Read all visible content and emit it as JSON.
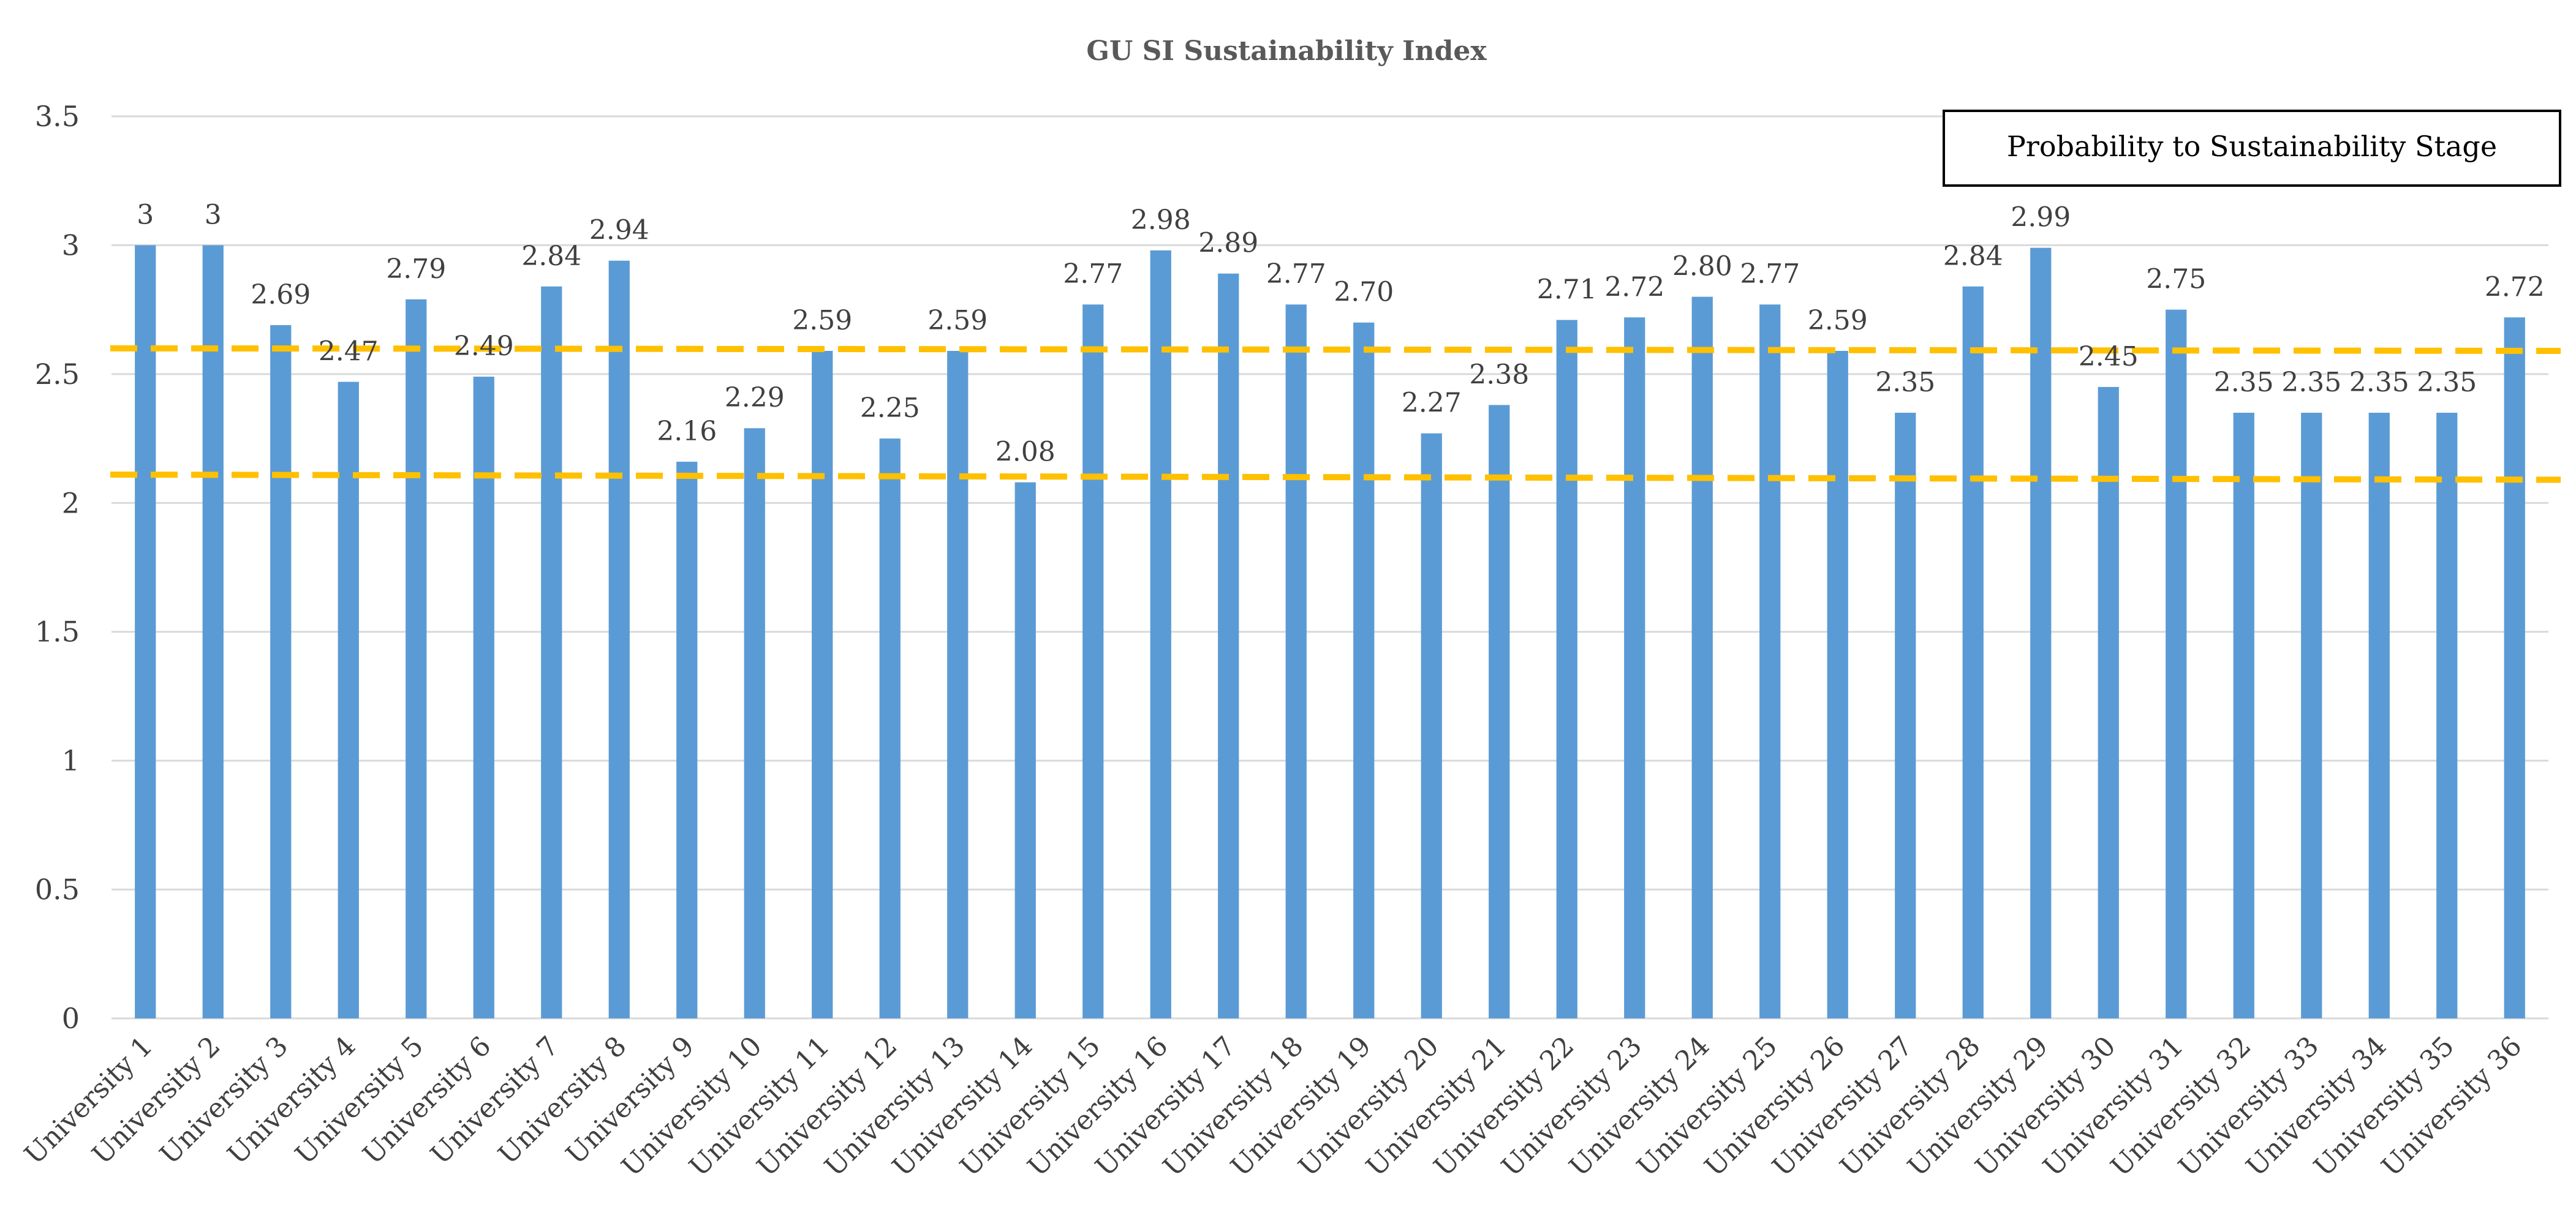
{
  "chart_data": {
    "type": "bar",
    "title": "GU SI Sustainability  Index",
    "xlabel": "",
    "ylabel": "",
    "ylim": [
      0,
      3.5
    ],
    "yticks": [
      {
        "value": 0,
        "label": "0"
      },
      {
        "value": 0.5,
        "label": "0.5"
      },
      {
        "value": 1,
        "label": "1"
      },
      {
        "value": 1.5,
        "label": "1.5"
      },
      {
        "value": 2,
        "label": "2"
      },
      {
        "value": 2.5,
        "label": "2.5"
      },
      {
        "value": 3,
        "label": "3"
      },
      {
        "value": 3.5,
        "label": "3.5"
      }
    ],
    "grid": true,
    "categories": [
      "University 1",
      "University 2",
      "University 3",
      "University 4",
      "University 5",
      "University 6",
      "University 7",
      "University 8",
      "University 9",
      "University 10",
      "University 11",
      "University 12",
      "University 13",
      "University 14",
      "University 15",
      "University 16",
      "University 17",
      "University 18",
      "University 19",
      "University 20",
      "University 21",
      "University 22",
      "University 23",
      "University 24",
      "University 25",
      "University 26",
      "University 27",
      "University 28",
      "University 29",
      "University 30",
      "University 31",
      "University 32",
      "University 33",
      "University 34",
      "University 35",
      "University 36"
    ],
    "values": [
      3,
      3,
      2.69,
      2.47,
      2.79,
      2.49,
      2.84,
      2.94,
      2.16,
      2.29,
      2.59,
      2.25,
      2.59,
      2.08,
      2.77,
      2.98,
      2.89,
      2.77,
      2.7,
      2.27,
      2.38,
      2.71,
      2.72,
      2.8,
      2.77,
      2.59,
      2.35,
      2.84,
      2.99,
      2.45,
      2.75,
      2.35,
      2.35,
      2.35,
      2.35,
      2.72
    ],
    "data_labels": [
      "3",
      "3",
      "2.69",
      "2.47",
      "2.79",
      "2.49",
      "2.84",
      "2.94",
      "2.16",
      "2.29",
      "2.59",
      "2.25",
      "2.59",
      "2.08",
      "2.77",
      "2.98",
      "2.89",
      "2.77",
      "2.70",
      "2.27",
      "2.38",
      "2.71",
      "2.72",
      "2.80",
      "2.77",
      "2.59",
      "2.35",
      "2.84",
      "2.99",
      "2.45",
      "2.75",
      "2.35",
      "2.35",
      "2.35",
      "2.35",
      "2.72"
    ],
    "reference_lines": [
      {
        "start": 2.6,
        "end": 2.59
      },
      {
        "start": 2.11,
        "end": 2.09
      }
    ],
    "legend": {
      "label": "Probability to Sustainability Stage",
      "placement": "top-right"
    },
    "colors": {
      "bar": "#5b9bd5",
      "reference_line": "#ffc000",
      "grid": "#d9d9d9"
    }
  }
}
